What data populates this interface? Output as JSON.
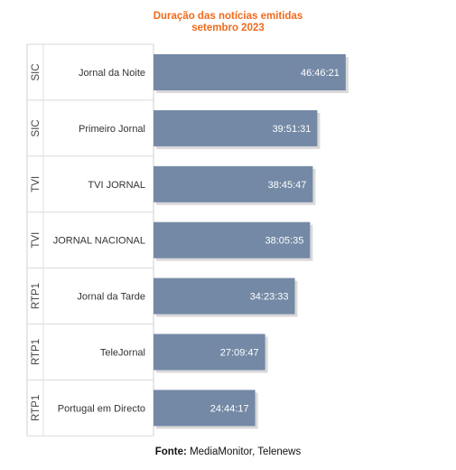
{
  "title_line1": "Duração das notícias emitidas",
  "title_line2": "setembro 2023",
  "source_label": "Fonte:",
  "source_text": "MediaMonitor, Telenews",
  "chart_data": {
    "type": "bar",
    "orientation": "horizontal",
    "bar_color": "#7489a6",
    "shadow_color": "#c9c9c9",
    "label_color": "#ffffff",
    "legend": "none",
    "grid": false,
    "xlim_seconds": [
      0,
      265000
    ],
    "categories": [
      {
        "channel": "SIC",
        "program": "Jornal da Noite",
        "duration": "46:46:21",
        "seconds": 168381
      },
      {
        "channel": "SIC",
        "program": "Primeiro Jornal",
        "duration": "39:51:31",
        "seconds": 143491
      },
      {
        "channel": "TVI",
        "program": "TVI JORNAL",
        "duration": "38:45:47",
        "seconds": 139547
      },
      {
        "channel": "TVI",
        "program": "JORNAL NACIONAL",
        "duration": "38:05:35",
        "seconds": 137135
      },
      {
        "channel": "RTP1",
        "program": "Jornal da Tarde",
        "duration": "34:23:33",
        "seconds": 123813
      },
      {
        "channel": "RTP1",
        "program": "TeleJornal",
        "duration": "27:09:47",
        "seconds": 97787
      },
      {
        "channel": "RTP1",
        "program": "Portugal em Directo",
        "duration": "24:44:17",
        "seconds": 89057
      }
    ]
  }
}
